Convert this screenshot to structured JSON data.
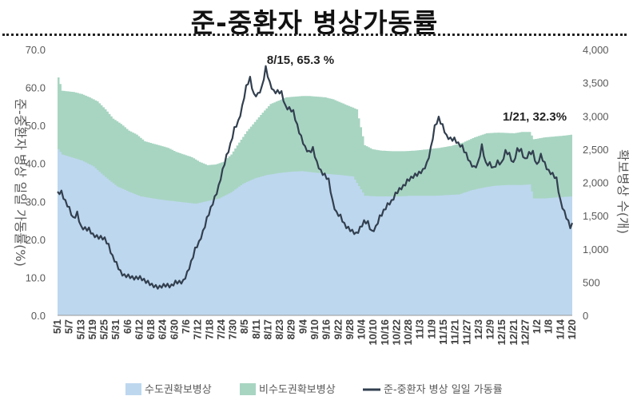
{
  "title": "준-중환자 병상가동률",
  "chart_data": {
    "type": "area+line",
    "y_left": {
      "label": "준-중환자 병상 일일 가동률(%)",
      "min": 0,
      "max": 70,
      "ticks": [
        "0.0",
        "10.0",
        "20.0",
        "30.0",
        "40.0",
        "50.0",
        "60.0",
        "70.0"
      ]
    },
    "y_right": {
      "label": "확보병상 수(개)",
      "min": 0,
      "max": 4000,
      "ticks": [
        "0",
        "500",
        "1,000",
        "1,500",
        "2,000",
        "2,500",
        "3,000",
        "3,500",
        "4,000"
      ]
    },
    "x_ticks": [
      "5/1",
      "5/7",
      "5/13",
      "5/19",
      "5/25",
      "5/31",
      "6/6",
      "6/12",
      "6/18",
      "6/24",
      "6/30",
      "7/6",
      "7/12",
      "7/18",
      "7/24",
      "7/30",
      "8/5",
      "8/11",
      "8/17",
      "8/23",
      "8/29",
      "9/4",
      "9/10",
      "9/16",
      "9/22",
      "9/28",
      "10/4",
      "10/10",
      "10/16",
      "10/22",
      "10/28",
      "11/3",
      "11/9",
      "11/15",
      "11/21",
      "11/27",
      "12/3",
      "12/9",
      "12/15",
      "12/21",
      "12/27",
      "1/2",
      "1/8",
      "1/14",
      "1/20"
    ],
    "annotations": [
      {
        "text": "8/15, 65.3 %",
        "date": "8/15",
        "value": 65.3
      },
      {
        "text": "1/21, 32.3%",
        "date": "1/21",
        "value": 32.3
      }
    ],
    "legend": [
      "수도권확보병상",
      "비수도권확보병상",
      "준-중환자 병상 일일 가동률"
    ],
    "colors": {
      "capital": "#bdd7ee",
      "noncapital": "#a8d5c2",
      "line": "#323f4f",
      "axis_text": "#595959"
    },
    "series": {
      "capital_beds_keypoints": [
        [
          0,
          2500
        ],
        [
          2,
          2420
        ],
        [
          12,
          2330
        ],
        [
          18,
          2240
        ],
        [
          24,
          2080
        ],
        [
          30,
          1940
        ],
        [
          36,
          1860
        ],
        [
          42,
          1790
        ],
        [
          50,
          1750
        ],
        [
          58,
          1720
        ],
        [
          64,
          1700
        ],
        [
          70,
          1680
        ],
        [
          76,
          1720
        ],
        [
          82,
          1760
        ],
        [
          88,
          1850
        ],
        [
          94,
          1980
        ],
        [
          100,
          2060
        ],
        [
          106,
          2110
        ],
        [
          112,
          2140
        ],
        [
          118,
          2160
        ],
        [
          124,
          2170
        ],
        [
          130,
          2150
        ],
        [
          136,
          2130
        ],
        [
          144,
          2110
        ],
        [
          150,
          2090
        ],
        [
          156,
          1800
        ],
        [
          162,
          1790
        ],
        [
          168,
          1790
        ],
        [
          174,
          1790
        ],
        [
          180,
          1800
        ],
        [
          186,
          1800
        ],
        [
          192,
          1800
        ],
        [
          198,
          1810
        ],
        [
          204,
          1820
        ],
        [
          210,
          1880
        ],
        [
          216,
          1920
        ],
        [
          222,
          1950
        ],
        [
          228,
          1960
        ],
        [
          236,
          1960
        ],
        [
          240,
          1970
        ],
        [
          242,
          1760
        ],
        [
          248,
          1760
        ],
        [
          256,
          1780
        ],
        [
          262,
          1790
        ]
      ],
      "total_beds_keypoints": [
        [
          0,
          3580
        ],
        [
          2,
          3380
        ],
        [
          8,
          3360
        ],
        [
          12,
          3330
        ],
        [
          16,
          3280
        ],
        [
          20,
          3220
        ],
        [
          24,
          3100
        ],
        [
          28,
          2960
        ],
        [
          32,
          2880
        ],
        [
          36,
          2780
        ],
        [
          40,
          2720
        ],
        [
          44,
          2620
        ],
        [
          50,
          2570
        ],
        [
          56,
          2520
        ],
        [
          60,
          2460
        ],
        [
          64,
          2420
        ],
        [
          68,
          2380
        ],
        [
          72,
          2310
        ],
        [
          76,
          2260
        ],
        [
          80,
          2270
        ],
        [
          84,
          2310
        ],
        [
          88,
          2420
        ],
        [
          92,
          2600
        ],
        [
          96,
          2770
        ],
        [
          100,
          2910
        ],
        [
          104,
          3050
        ],
        [
          108,
          3180
        ],
        [
          112,
          3230
        ],
        [
          116,
          3280
        ],
        [
          120,
          3290
        ],
        [
          124,
          3300
        ],
        [
          128,
          3300
        ],
        [
          132,
          3290
        ],
        [
          136,
          3280
        ],
        [
          140,
          3250
        ],
        [
          144,
          3200
        ],
        [
          148,
          3150
        ],
        [
          152,
          3100
        ],
        [
          156,
          2560
        ],
        [
          160,
          2500
        ],
        [
          164,
          2480
        ],
        [
          170,
          2470
        ],
        [
          176,
          2470
        ],
        [
          182,
          2480
        ],
        [
          188,
          2500
        ],
        [
          194,
          2520
        ],
        [
          200,
          2550
        ],
        [
          206,
          2600
        ],
        [
          212,
          2680
        ],
        [
          218,
          2740
        ],
        [
          224,
          2750
        ],
        [
          232,
          2740
        ],
        [
          236,
          2760
        ],
        [
          240,
          2760
        ],
        [
          242,
          2650
        ],
        [
          248,
          2680
        ],
        [
          256,
          2700
        ],
        [
          262,
          2720
        ]
      ],
      "utilization_keypoints": [
        [
          0,
          32
        ],
        [
          2,
          32.5
        ],
        [
          4,
          30
        ],
        [
          6,
          28
        ],
        [
          8,
          25.5
        ],
        [
          10,
          27
        ],
        [
          12,
          23
        ],
        [
          16,
          22.8
        ],
        [
          18,
          21
        ],
        [
          22,
          20.6
        ],
        [
          24,
          20
        ],
        [
          26,
          18.5
        ],
        [
          28,
          15.5
        ],
        [
          32,
          11.5
        ],
        [
          34,
          10.5
        ],
        [
          38,
          10
        ],
        [
          42,
          9.8
        ],
        [
          46,
          8.8
        ],
        [
          48,
          7.8
        ],
        [
          52,
          7.5
        ],
        [
          56,
          8
        ],
        [
          58,
          7.8
        ],
        [
          60,
          8.6
        ],
        [
          64,
          9
        ],
        [
          66,
          11
        ],
        [
          68,
          14
        ],
        [
          70,
          17.5
        ],
        [
          72,
          19
        ],
        [
          74,
          22
        ],
        [
          76,
          25.5
        ],
        [
          78,
          28
        ],
        [
          80,
          31
        ],
        [
          82,
          34
        ],
        [
          84,
          38
        ],
        [
          86,
          42
        ],
        [
          88,
          45
        ],
        [
          90,
          49
        ],
        [
          92,
          51
        ],
        [
          94,
          55
        ],
        [
          96,
          60
        ],
        [
          98,
          62.5
        ],
        [
          100,
          58
        ],
        [
          102,
          58
        ],
        [
          104,
          60
        ],
        [
          106,
          65.3
        ],
        [
          108,
          61
        ],
        [
          110,
          59
        ],
        [
          112,
          59
        ],
        [
          114,
          58.5
        ],
        [
          116,
          55
        ],
        [
          118,
          54.5
        ],
        [
          120,
          53.5
        ],
        [
          122,
          50
        ],
        [
          124,
          47
        ],
        [
          126,
          44
        ],
        [
          128,
          43
        ],
        [
          130,
          44
        ],
        [
          132,
          40
        ],
        [
          134,
          38
        ],
        [
          136,
          37
        ],
        [
          138,
          35.5
        ],
        [
          140,
          30
        ],
        [
          142,
          27
        ],
        [
          144,
          26
        ],
        [
          146,
          24
        ],
        [
          148,
          23
        ],
        [
          150,
          22
        ],
        [
          152,
          21.5
        ],
        [
          154,
          23
        ],
        [
          156,
          24.5
        ],
        [
          158,
          24.5
        ],
        [
          160,
          22
        ],
        [
          162,
          23
        ],
        [
          164,
          26
        ],
        [
          166,
          27.5
        ],
        [
          168,
          29
        ],
        [
          170,
          30
        ],
        [
          172,
          32
        ],
        [
          174,
          33
        ],
        [
          176,
          34
        ],
        [
          178,
          35.5
        ],
        [
          180,
          36
        ],
        [
          182,
          37
        ],
        [
          184,
          37.5
        ],
        [
          186,
          38
        ],
        [
          188,
          40
        ],
        [
          190,
          44
        ],
        [
          192,
          49.5
        ],
        [
          194,
          52
        ],
        [
          196,
          50
        ],
        [
          198,
          47
        ],
        [
          200,
          46.5
        ],
        [
          202,
          46.5
        ],
        [
          204,
          45
        ],
        [
          206,
          44.5
        ],
        [
          208,
          42.5
        ],
        [
          210,
          40
        ],
        [
          212,
          39
        ],
        [
          214,
          40
        ],
        [
          216,
          44.5
        ],
        [
          218,
          40
        ],
        [
          220,
          40
        ],
        [
          222,
          38.5
        ],
        [
          224,
          40.5
        ],
        [
          226,
          40
        ],
        [
          228,
          43
        ],
        [
          230,
          42.5
        ],
        [
          232,
          40
        ],
        [
          234,
          43.5
        ],
        [
          236,
          43.5
        ],
        [
          238,
          41
        ],
        [
          240,
          42.5
        ],
        [
          242,
          43
        ],
        [
          244,
          39.5
        ],
        [
          246,
          42
        ],
        [
          248,
          40
        ],
        [
          250,
          38
        ],
        [
          252,
          37
        ],
        [
          254,
          36
        ],
        [
          256,
          30
        ],
        [
          258,
          27
        ],
        [
          261,
          23.5
        ],
        [
          262,
          24
        ]
      ]
    }
  }
}
